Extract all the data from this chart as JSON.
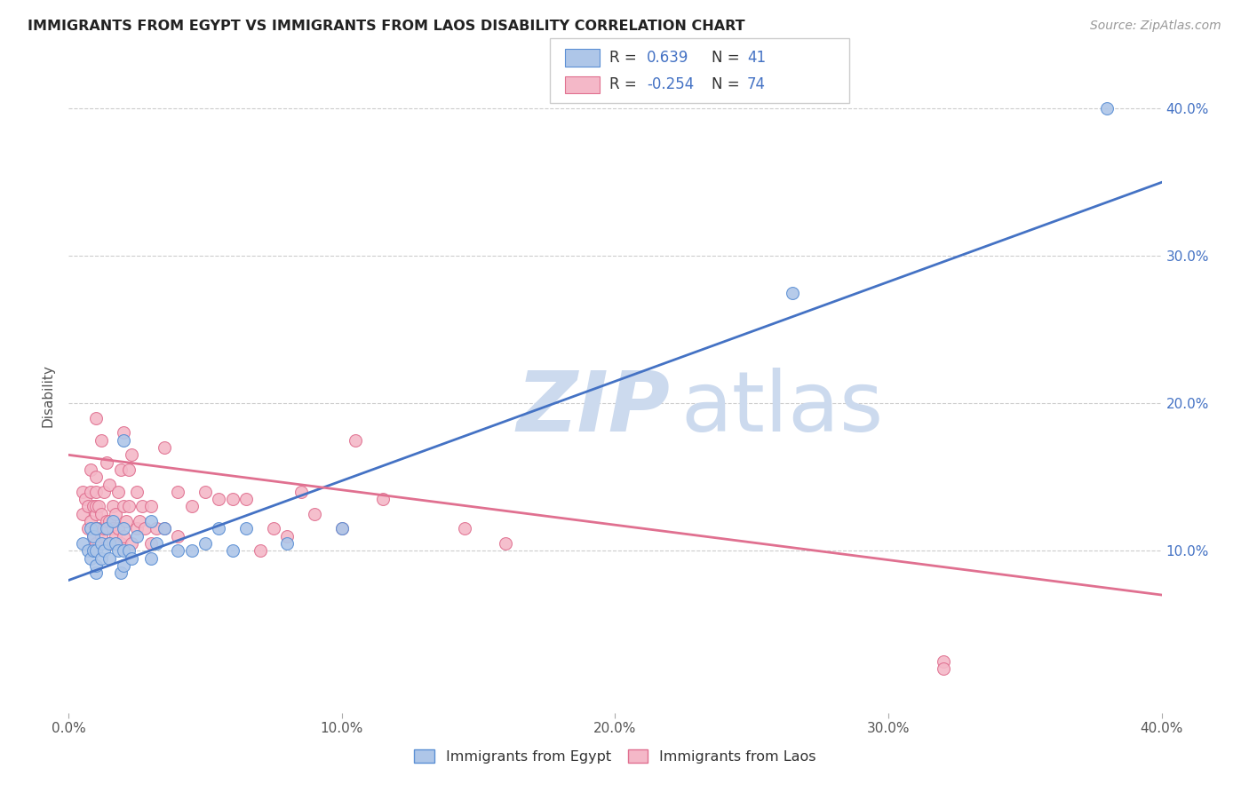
{
  "title": "IMMIGRANTS FROM EGYPT VS IMMIGRANTS FROM LAOS DISABILITY CORRELATION CHART",
  "source": "Source: ZipAtlas.com",
  "ylabel_label": "Disability",
  "x_min": 0.0,
  "x_max": 0.4,
  "y_min": 0.0,
  "y_max": 0.42,
  "egypt_color": "#aec6e8",
  "egypt_edge_color": "#5b8fd4",
  "laos_color": "#f4b8c8",
  "laos_edge_color": "#e07090",
  "line_egypt_color": "#4472c4",
  "line_laos_color": "#e07090",
  "watermark_color": "#ccdaee",
  "egypt_line_y0": 0.08,
  "egypt_line_y1": 0.35,
  "laos_line_y0": 0.165,
  "laos_line_y1": 0.07,
  "egypt_x": [
    0.005,
    0.007,
    0.008,
    0.008,
    0.009,
    0.009,
    0.01,
    0.01,
    0.01,
    0.01,
    0.012,
    0.012,
    0.013,
    0.014,
    0.015,
    0.015,
    0.016,
    0.017,
    0.018,
    0.019,
    0.02,
    0.02,
    0.02,
    0.02,
    0.022,
    0.023,
    0.025,
    0.03,
    0.03,
    0.032,
    0.035,
    0.04,
    0.045,
    0.05,
    0.055,
    0.06,
    0.065,
    0.08,
    0.1,
    0.265,
    0.38
  ],
  "egypt_y": [
    0.105,
    0.1,
    0.115,
    0.095,
    0.1,
    0.11,
    0.085,
    0.09,
    0.1,
    0.115,
    0.095,
    0.105,
    0.1,
    0.115,
    0.095,
    0.105,
    0.12,
    0.105,
    0.1,
    0.085,
    0.09,
    0.1,
    0.115,
    0.175,
    0.1,
    0.095,
    0.11,
    0.095,
    0.12,
    0.105,
    0.115,
    0.1,
    0.1,
    0.105,
    0.115,
    0.1,
    0.115,
    0.105,
    0.115,
    0.275,
    0.4
  ],
  "laos_x": [
    0.005,
    0.005,
    0.006,
    0.007,
    0.007,
    0.008,
    0.008,
    0.008,
    0.009,
    0.009,
    0.01,
    0.01,
    0.01,
    0.01,
    0.01,
    0.01,
    0.01,
    0.011,
    0.011,
    0.012,
    0.012,
    0.012,
    0.013,
    0.013,
    0.014,
    0.014,
    0.015,
    0.015,
    0.015,
    0.016,
    0.016,
    0.017,
    0.017,
    0.018,
    0.018,
    0.019,
    0.019,
    0.02,
    0.02,
    0.02,
    0.021,
    0.022,
    0.022,
    0.023,
    0.023,
    0.025,
    0.025,
    0.026,
    0.027,
    0.028,
    0.03,
    0.03,
    0.032,
    0.035,
    0.035,
    0.04,
    0.04,
    0.045,
    0.05,
    0.055,
    0.06,
    0.065,
    0.07,
    0.075,
    0.08,
    0.085,
    0.09,
    0.1,
    0.105,
    0.115,
    0.145,
    0.16,
    0.32,
    0.32
  ],
  "laos_y": [
    0.125,
    0.14,
    0.135,
    0.115,
    0.13,
    0.12,
    0.14,
    0.155,
    0.11,
    0.13,
    0.105,
    0.115,
    0.125,
    0.13,
    0.14,
    0.15,
    0.19,
    0.115,
    0.13,
    0.11,
    0.125,
    0.175,
    0.115,
    0.14,
    0.12,
    0.16,
    0.105,
    0.12,
    0.145,
    0.115,
    0.13,
    0.11,
    0.125,
    0.115,
    0.14,
    0.105,
    0.155,
    0.11,
    0.13,
    0.18,
    0.12,
    0.13,
    0.155,
    0.105,
    0.165,
    0.115,
    0.14,
    0.12,
    0.13,
    0.115,
    0.105,
    0.13,
    0.115,
    0.115,
    0.17,
    0.11,
    0.14,
    0.13,
    0.14,
    0.135,
    0.135,
    0.135,
    0.1,
    0.115,
    0.11,
    0.14,
    0.125,
    0.115,
    0.175,
    0.135,
    0.115,
    0.105,
    0.025,
    0.02
  ]
}
